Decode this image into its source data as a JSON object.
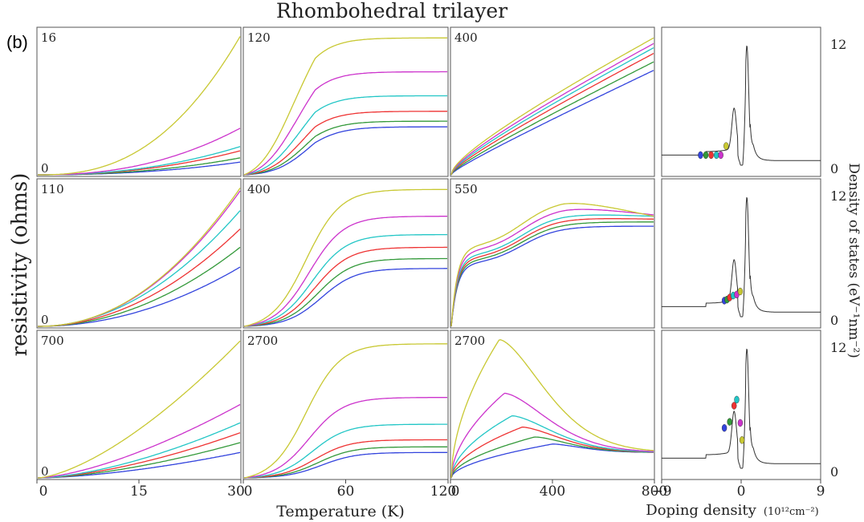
{
  "figure": {
    "title": "Rhombohedral trilayer",
    "panel_label": "(b)",
    "ylabel": "resistivity (ohms)",
    "xlabel": "Temperature (K)",
    "dos_ylabel": "Density of states (eV⁻¹nm⁻²)",
    "dos_xlabel": "Doping density",
    "dos_xlabel_units": "(10¹²cm⁻²)"
  },
  "colors": {
    "series": [
      "#3344dd",
      "#33993a",
      "#ee3333",
      "#22c6c6",
      "#cc33cc",
      "#c8c832"
    ],
    "dos_line": "#333333",
    "frame": "#555555"
  },
  "chart_data": {
    "type": "line",
    "series_order": [
      "blue",
      "green",
      "red",
      "cyan",
      "magenta",
      "yellow"
    ],
    "columns": [
      {
        "xmin": 0,
        "xmax": 30,
        "ticks": [
          0,
          15,
          30
        ]
      },
      {
        "xmin": 0,
        "xmax": 120,
        "ticks": [
          0,
          60,
          120
        ]
      },
      {
        "xmin": 0,
        "xmax": 800,
        "ticks": [
          0,
          400,
          800
        ]
      }
    ],
    "rows": [
      {
        "panels": [
          {
            "ymax_label": "16",
            "ymin_label": "0",
            "shape": "power",
            "finals": [
              0.09,
              0.12,
              0.17,
              0.2,
              0.33,
              0.98
            ],
            "curv": [
              2.2,
              2.2,
              2.2,
              2.2,
              2.3,
              2.5
            ]
          },
          {
            "ymax_label": "120",
            "ymin_label": "",
            "shape": "sigmoid_linear",
            "finals": [
              0.34,
              0.38,
              0.45,
              0.56,
              0.73,
              0.97
            ]
          },
          {
            "ymax_label": "400",
            "ymin_label": "",
            "shape": "sqrt_linear",
            "finals": [
              0.74,
              0.8,
              0.86,
              0.9,
              0.93,
              0.97
            ]
          }
        ]
      },
      {
        "panels": [
          {
            "ymax_label": "110",
            "ymin_label": "0",
            "shape": "power",
            "finals": [
              0.42,
              0.56,
              0.69,
              0.82,
              0.96,
              0.98
            ],
            "curv": [
              2.0,
              2.0,
              2.0,
              2.0,
              2.1,
              2.1
            ]
          },
          {
            "ymax_label": "400",
            "ymin_label": "",
            "shape": "sigmoid_sat",
            "finals": [
              0.41,
              0.48,
              0.56,
              0.65,
              0.78,
              0.97
            ]
          },
          {
            "ymax_label": "550",
            "ymin_label": "",
            "shape": "two_step",
            "finals": [
              0.71,
              0.74,
              0.76,
              0.78,
              0.79,
              0.78
            ],
            "peaks": [
              0.71,
              0.74,
              0.77,
              0.8,
              0.85,
              0.9
            ]
          }
        ]
      },
      {
        "panels": [
          {
            "ymax_label": "700",
            "ymin_label": "0",
            "shape": "power",
            "finals": [
              0.18,
              0.25,
              0.32,
              0.39,
              0.52,
              0.97
            ],
            "curv": [
              1.6,
              1.6,
              1.6,
              1.6,
              1.5,
              1.5
            ]
          },
          {
            "ymax_label": "2700",
            "ymin_label": "",
            "shape": "sigmoid_sat",
            "finals": [
              0.18,
              0.22,
              0.27,
              0.38,
              0.57,
              0.95
            ]
          },
          {
            "ymax_label": "2700",
            "ymin_label": "",
            "shape": "peak",
            "finals": [
              0.18,
              0.18,
              0.18,
              0.18,
              0.18,
              0.18
            ],
            "peaks": [
              0.24,
              0.29,
              0.36,
              0.44,
              0.6,
              0.98
            ],
            "peak_x": [
              400,
              330,
              280,
              240,
              210,
              190
            ]
          }
        ]
      }
    ],
    "dos": {
      "x_range": [
        -9,
        9
      ],
      "x_ticks": [
        -9,
        0,
        9
      ],
      "y_range": [
        0,
        12
      ],
      "y_tick_labels": [
        "0",
        "12"
      ],
      "rows": [
        {
          "dots": [
            [
              -4.6,
              1.0
            ],
            [
              -4.0,
              1.0
            ],
            [
              -3.4,
              1.0
            ],
            [
              -2.8,
              1.0
            ],
            [
              -2.3,
              1.0
            ],
            [
              -1.7,
              1.9
            ]
          ]
        },
        {
          "dots": [
            [
              -1.9,
              1.6
            ],
            [
              -1.6,
              1.7
            ],
            [
              -1.3,
              1.9
            ],
            [
              -0.9,
              2.1
            ],
            [
              -0.5,
              2.2
            ],
            [
              -0.1,
              2.5
            ]
          ]
        },
        {
          "dots": [
            [
              -1.9,
              4.0
            ],
            [
              -1.3,
              4.6
            ],
            [
              -0.8,
              6.2
            ],
            [
              -0.5,
              6.8
            ],
            [
              -0.1,
              4.5
            ],
            [
              0.1,
              2.8
            ]
          ]
        }
      ]
    }
  }
}
